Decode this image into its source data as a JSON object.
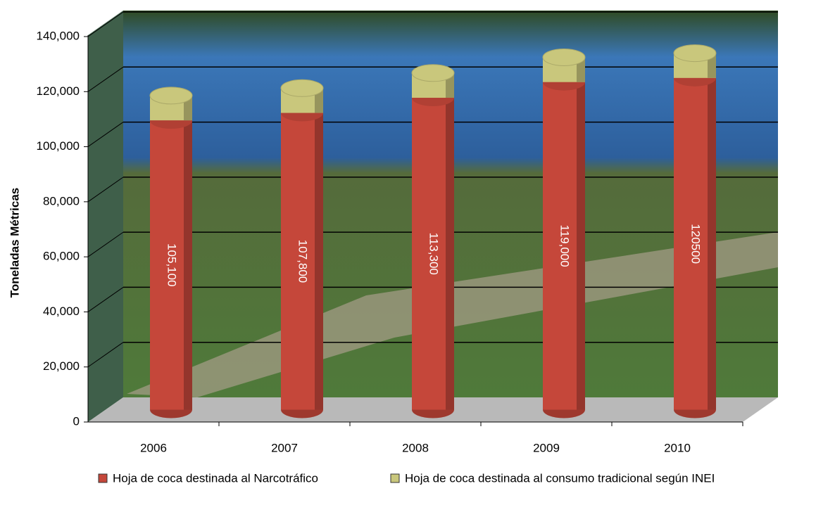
{
  "chart_data": {
    "type": "bar3d_stacked",
    "y_label": "Toneladas Métricas",
    "categories": [
      "2006",
      "2007",
      "2008",
      "2009",
      "2010"
    ],
    "series": [
      {
        "name": "Hoja de coca destinada al Narcotráfico",
        "color": "#c5473a",
        "values": [
          105100,
          107800,
          113300,
          119000,
          120500
        ],
        "value_labels": [
          "105,100",
          "107,800",
          "113,300",
          "119,000",
          "120500"
        ]
      },
      {
        "name": "Hoja de coca destinada al consumo tradicional según INEI",
        "color": "#c9c77c",
        "values": [
          9000,
          9000,
          9000,
          9000,
          9000
        ]
      }
    ],
    "ylim": [
      0,
      140000
    ],
    "yticks": [
      0,
      {
        "value": 20000,
        "label": "20,000"
      },
      {
        "value": 40000,
        "label": "40,000"
      },
      {
        "value": 60000,
        "label": "60,000"
      },
      {
        "value": 80000,
        "label": "80,000"
      },
      {
        "value": 100000,
        "label": "100,000"
      },
      {
        "value": 120000,
        "label": "120,000"
      },
      {
        "value": 140000,
        "label": "140,000"
      }
    ],
    "grid": true,
    "legend": "bottom"
  }
}
